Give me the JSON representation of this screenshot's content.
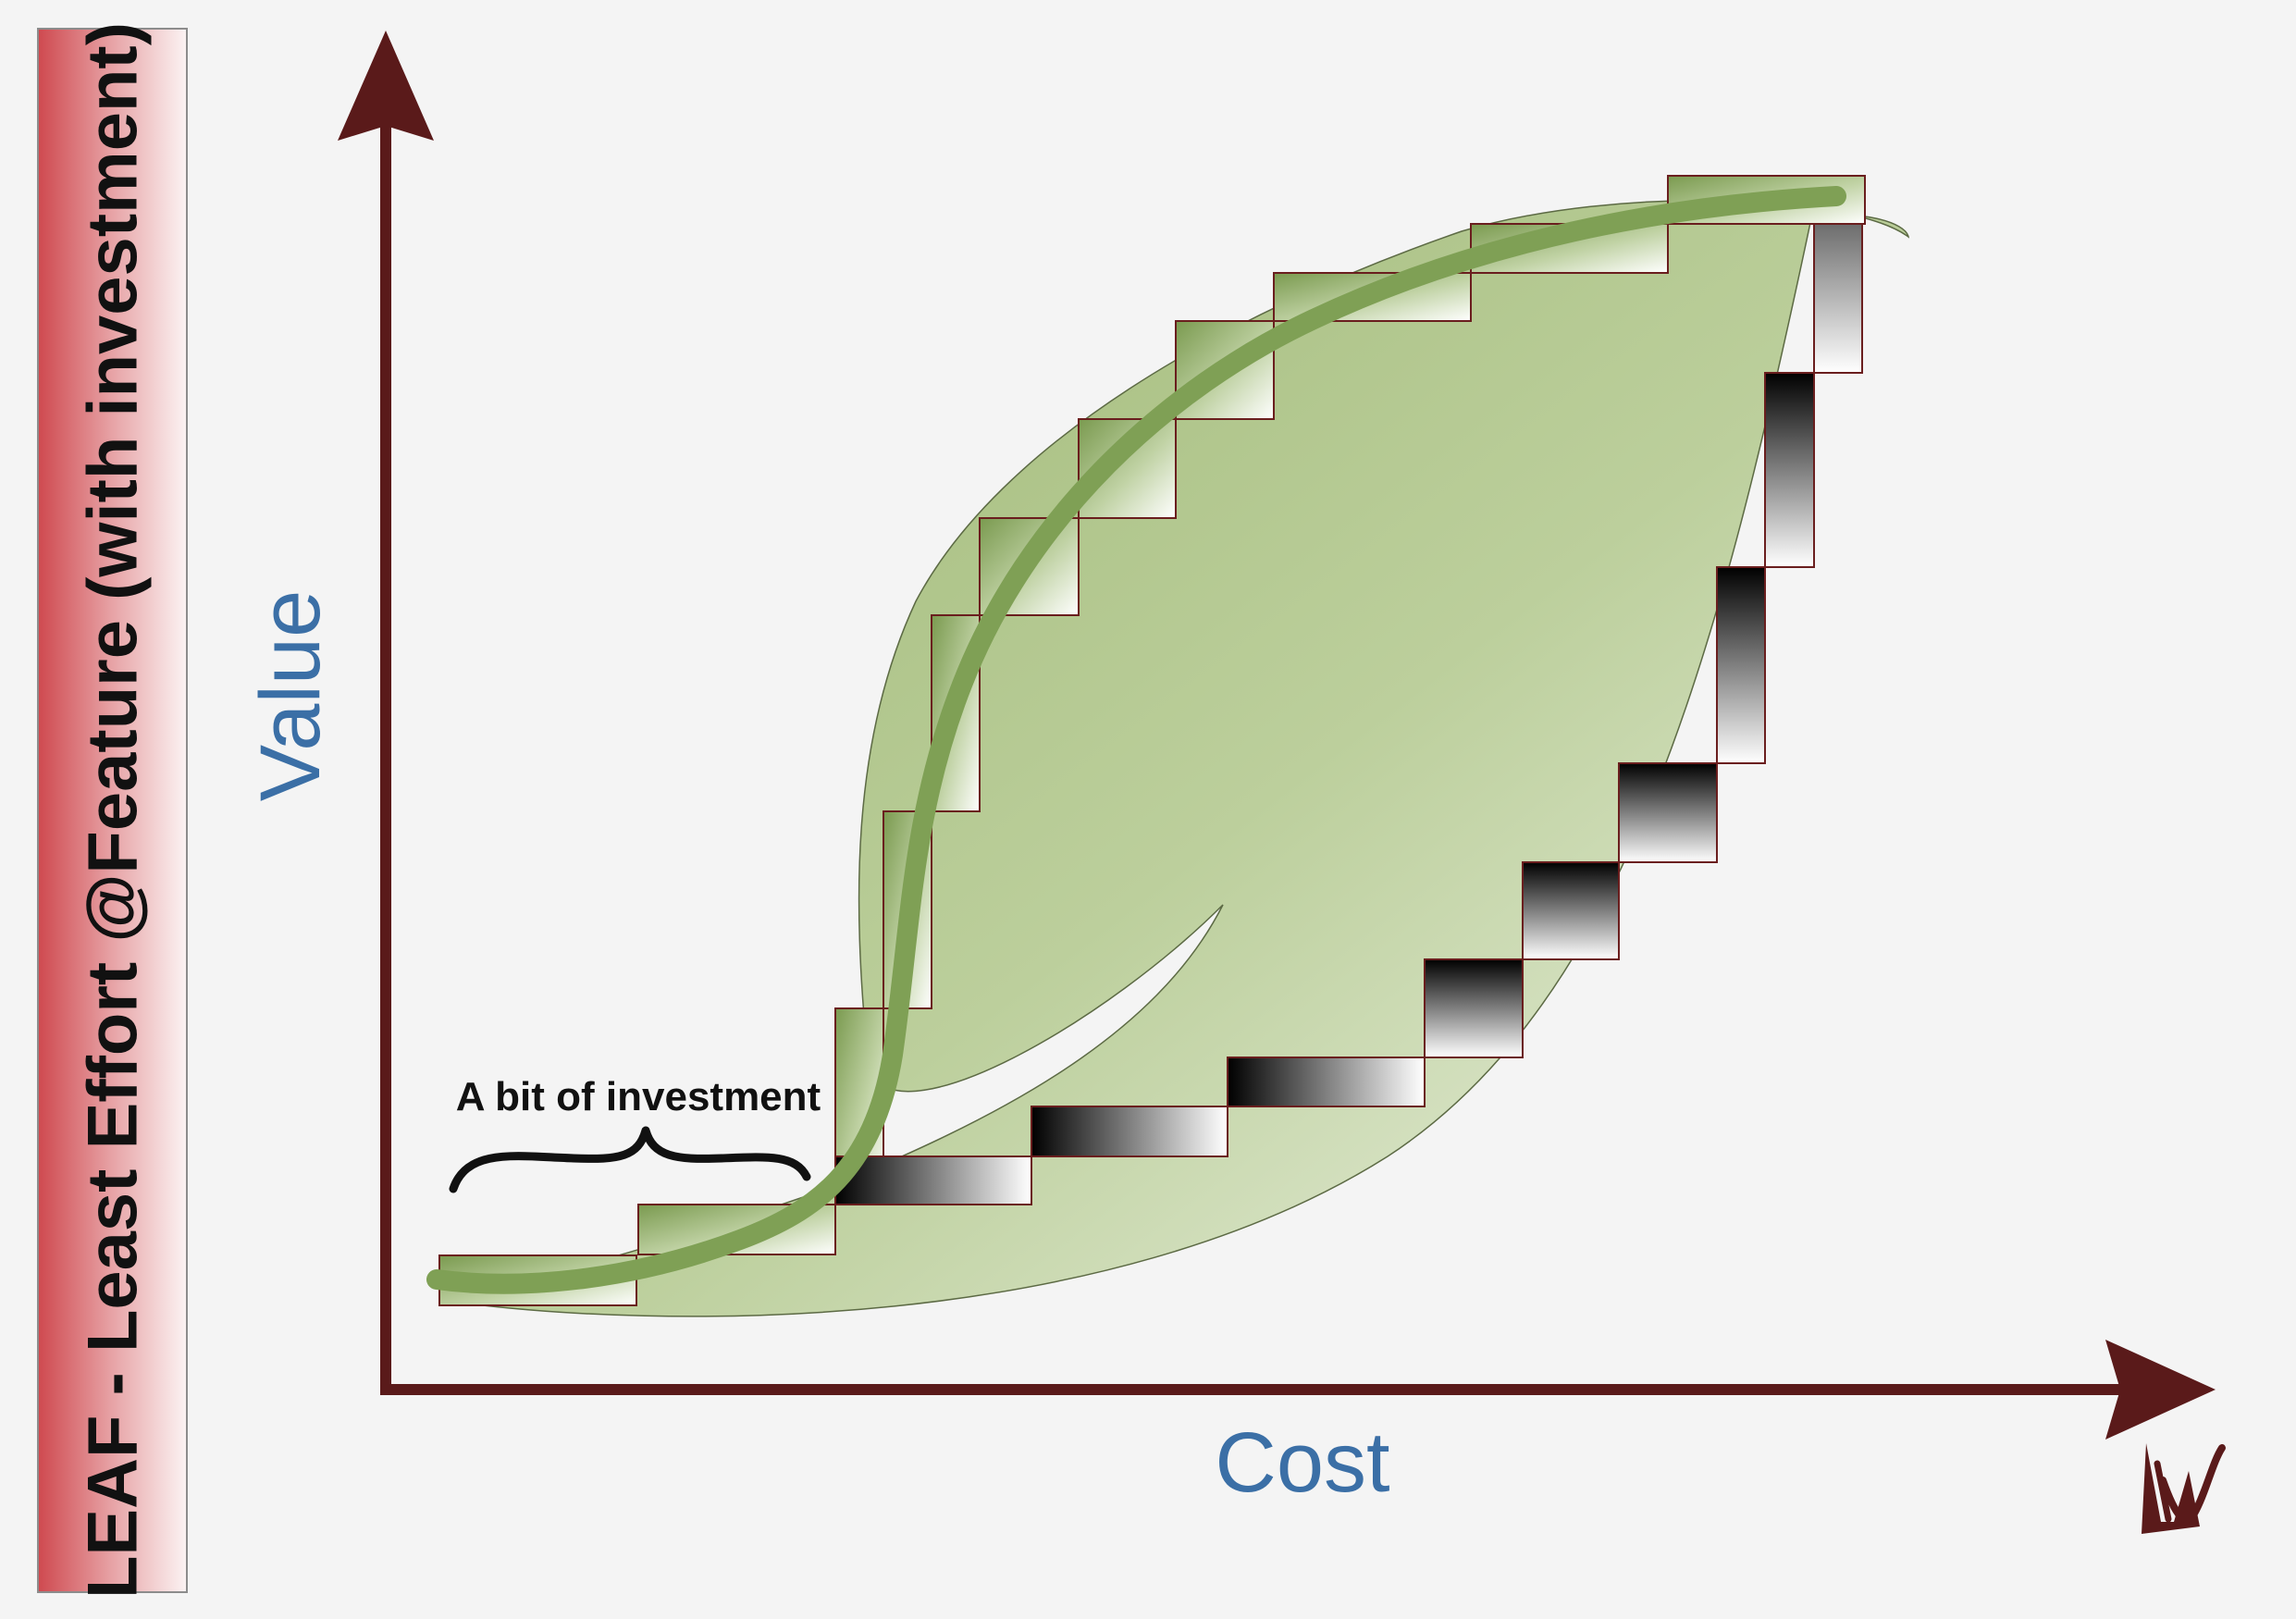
{
  "title": "LEAF - Least Effort @Feature (with investment)",
  "axes": {
    "x_label": "Cost",
    "y_label": "Value"
  },
  "annotation": "A bit of investment",
  "colors": {
    "axis": "#5a1a1a",
    "axis_label": "#3b6fa6",
    "leaf_dark": "#a2bb78",
    "leaf_light": "#e6eedb",
    "curve": "#7fa055",
    "block_border": "#6a1e1e",
    "title_band_left": "#cf4a50",
    "title_band_right": "#fbf2f2"
  },
  "logo": {
    "name": "signature-logo",
    "letter": "V"
  }
}
